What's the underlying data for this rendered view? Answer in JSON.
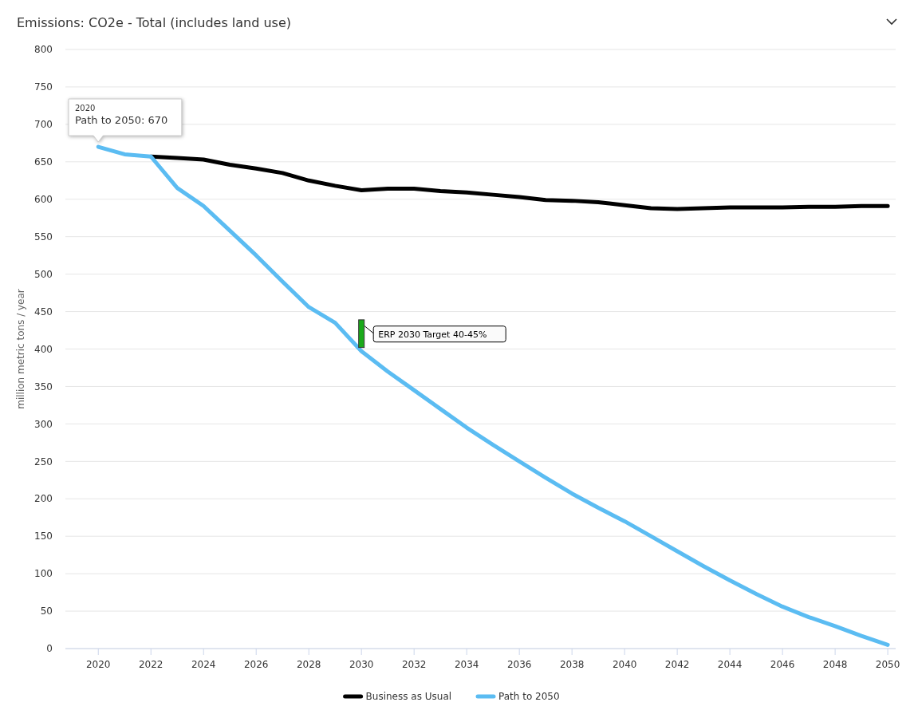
{
  "chart_data": {
    "type": "line",
    "title": "Emissions: CO2e - Total (includes land use)",
    "ylabel": "million metric tons / year",
    "x": [
      2020,
      2021,
      2022,
      2023,
      2024,
      2025,
      2026,
      2027,
      2028,
      2029,
      2030,
      2031,
      2032,
      2033,
      2034,
      2035,
      2036,
      2037,
      2038,
      2039,
      2040,
      2041,
      2042,
      2043,
      2044,
      2045,
      2046,
      2047,
      2048,
      2049,
      2050
    ],
    "xlim": [
      2018.75,
      2050.3
    ],
    "xticks": [
      2020,
      2022,
      2024,
      2026,
      2028,
      2030,
      2032,
      2034,
      2036,
      2038,
      2040,
      2042,
      2044,
      2046,
      2048,
      2050
    ],
    "ylim": [
      0,
      800
    ],
    "yticks": [
      0,
      50,
      100,
      150,
      200,
      250,
      300,
      350,
      400,
      450,
      500,
      550,
      600,
      650,
      700,
      750,
      800
    ],
    "grid": "y",
    "legend": "bottom",
    "marker": "none",
    "line_style": "solid",
    "series": [
      {
        "name": "Business as Usual",
        "color": "#000000",
        "values": [
          null,
          null,
          657,
          655,
          653,
          646,
          641,
          635,
          625,
          618,
          612,
          614,
          614,
          611,
          609,
          606,
          603,
          599,
          598,
          596,
          592,
          588,
          587,
          588,
          589,
          589,
          589,
          590,
          590,
          591,
          591
        ]
      },
      {
        "name": "Path to 2050",
        "color": "#5bbcf2",
        "values": [
          670,
          660,
          657,
          615,
          591,
          558,
          525,
          490,
          456,
          435,
          397,
          370,
          345,
          320,
          295,
          272,
          250,
          228,
          207,
          188,
          170,
          150,
          130,
          110,
          91,
          73,
          56,
          42,
          30,
          17,
          5
        ]
      },
      {
        "type": "bar",
        "color": "#1aaa1a",
        "x": [
          2030
        ],
        "base": [
          402
        ],
        "values": [
          37
        ]
      }
    ],
    "annotations": [
      {
        "text": "ERP 2030 Target 40-45%",
        "x": 2030,
        "y": 420
      },
      {
        "text": "2020\nPath to 2050: 670",
        "x": 2020,
        "y": 670
      }
    ]
  }
}
